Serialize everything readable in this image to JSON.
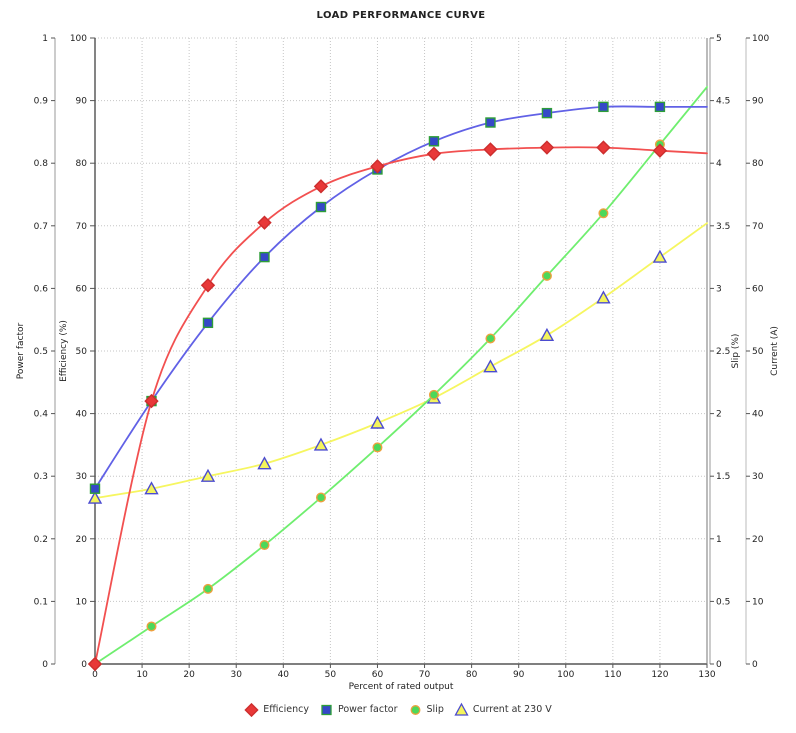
{
  "chart_data": {
    "type": "line",
    "title": "LOAD PERFORMANCE CURVE",
    "xlabel": "Percent of rated output",
    "xlim": [
      0,
      130
    ],
    "x_tick_labels": [
      "0",
      "10",
      "20",
      "30",
      "40",
      "50",
      "60",
      "70",
      "80",
      "90",
      "100",
      "110",
      "120",
      "130"
    ],
    "grid": true,
    "grid_color": "#c6c6c6",
    "background_color": "#ffffff",
    "legend_position": "bottom",
    "x": [
      0,
      12,
      24,
      36,
      48,
      60,
      72,
      84,
      96,
      108,
      120
    ],
    "axes": [
      {
        "id": "power_factor",
        "label": "Power factor",
        "side": "left-outer",
        "min": 0,
        "max": 1,
        "tick_labels": [
          "0",
          "0.1",
          "0.2",
          "0.3",
          "0.4",
          "0.5",
          "0.6",
          "0.7",
          "0.8",
          "0.9",
          "1"
        ]
      },
      {
        "id": "efficiency",
        "label": "Efficiency (%)",
        "side": "left-inner",
        "min": 0,
        "max": 100,
        "tick_labels": [
          "0",
          "10",
          "20",
          "30",
          "40",
          "50",
          "60",
          "70",
          "80",
          "90",
          "100"
        ]
      },
      {
        "id": "slip",
        "label": "Slip (%)",
        "side": "right-inner",
        "min": 0,
        "max": 5,
        "tick_labels": [
          "0",
          "0.5",
          "1",
          "1.5",
          "2",
          "2.5",
          "3",
          "3.5",
          "4",
          "4.5",
          "5"
        ]
      },
      {
        "id": "current",
        "label": "Current (A)",
        "side": "right-outer",
        "min": 0,
        "max": 100,
        "tick_labels": [
          "0",
          "10",
          "20",
          "30",
          "40",
          "50",
          "60",
          "70",
          "80",
          "90",
          "100"
        ]
      }
    ],
    "series": [
      {
        "name": "Efficiency",
        "axis": "efficiency",
        "marker": "diamond",
        "line_color": "#f25050",
        "marker_fill": "#e83838",
        "marker_edge": "#cc2e2e",
        "values": [
          0,
          42,
          60.5,
          70.5,
          76.3,
          79.5,
          81.5,
          82.2,
          82.5,
          82.5,
          82
        ]
      },
      {
        "name": "Power factor",
        "axis": "power_factor",
        "marker": "square",
        "line_color": "#6161e6",
        "marker_fill": "#3548c8",
        "marker_edge": "#2e9e38",
        "values": [
          0.28,
          0.42,
          0.545,
          0.65,
          0.73,
          0.79,
          0.835,
          0.865,
          0.88,
          0.89,
          0.89
        ]
      },
      {
        "name": "Slip",
        "axis": "slip",
        "marker": "circle",
        "line_color": "#6fee6f",
        "marker_fill": "#4cd85a",
        "marker_edge": "#eda03e",
        "values": [
          0,
          0.3,
          0.6,
          0.95,
          1.33,
          1.73,
          2.15,
          2.6,
          3.1,
          3.6,
          4.15
        ]
      },
      {
        "name": "Current at 230 V",
        "axis": "current",
        "marker": "triangle",
        "line_color": "#f6f660",
        "marker_fill": "#f4f45c",
        "marker_edge": "#4b4bd0",
        "values": [
          26.5,
          28,
          30,
          32,
          35,
          38.5,
          42.5,
          47.5,
          52.5,
          58.5,
          65
        ]
      }
    ]
  }
}
